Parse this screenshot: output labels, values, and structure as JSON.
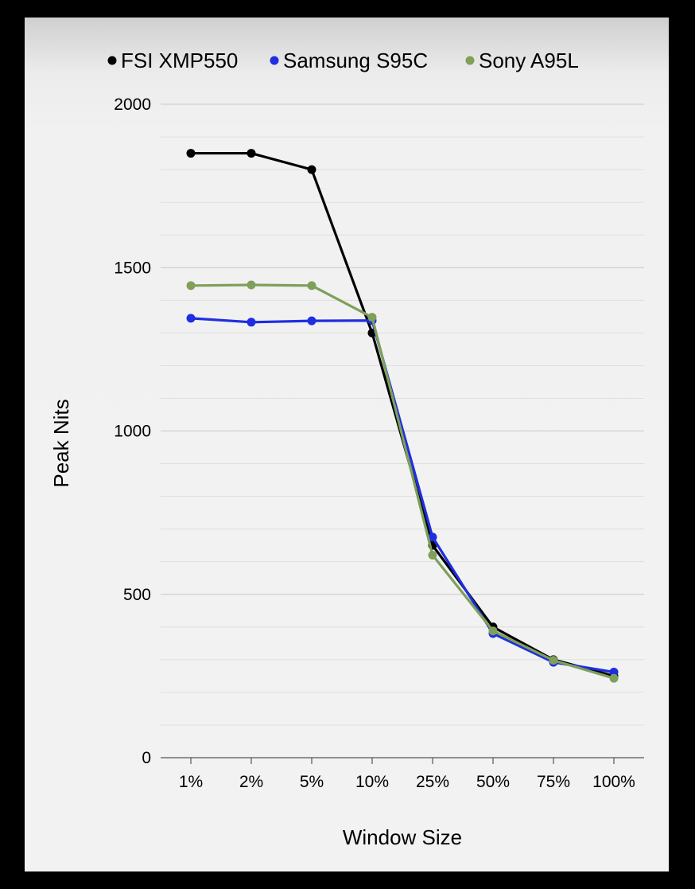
{
  "chart_data": {
    "type": "line",
    "xlabel": "Window Size",
    "ylabel": "Peak Nits",
    "categories": [
      "1%",
      "2%",
      "5%",
      "10%",
      "25%",
      "50%",
      "75%",
      "100%"
    ],
    "ylim": [
      0,
      2000
    ],
    "yticks": [
      "0",
      "500",
      "1000",
      "1500",
      "2000"
    ],
    "ytick_values": [
      0,
      500,
      1000,
      1500,
      2000
    ],
    "grid": true,
    "legend_position": "top",
    "series": [
      {
        "name": "FSI XMP550",
        "color": "#000000",
        "values": [
          1850,
          1850,
          1800,
          1300,
          650,
          400,
          300,
          250
        ]
      },
      {
        "name": "Samsung S95C",
        "color": "#1f2ee0",
        "values": [
          1345,
          1333,
          1337,
          1338,
          675,
          380,
          292,
          262
        ]
      },
      {
        "name": "Sony A95L",
        "color": "#7ea05a",
        "values": [
          1445,
          1447,
          1445,
          1348,
          620,
          388,
          298,
          243
        ]
      }
    ]
  }
}
